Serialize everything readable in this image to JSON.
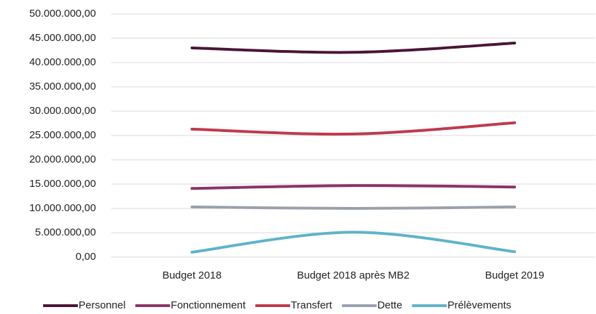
{
  "chart_data": {
    "type": "line",
    "categories": [
      "Budget 2018",
      "Budget 2018 après MB2",
      "Budget 2019"
    ],
    "series": [
      {
        "name": "Personnel",
        "color": "#4a1536",
        "values": [
          43000000,
          42100000,
          44000000
        ]
      },
      {
        "name": "Fonctionnement",
        "color": "#8b3366",
        "values": [
          14100000,
          14700000,
          14400000
        ]
      },
      {
        "name": "Transfert",
        "color": "#c0394e",
        "values": [
          26300000,
          25300000,
          27600000
        ]
      },
      {
        "name": "Dette",
        "color": "#9aa0ac",
        "values": [
          10300000,
          10000000,
          10300000
        ]
      },
      {
        "name": "Prélèvements",
        "color": "#5fb3c9",
        "values": [
          1000000,
          5100000,
          1100000
        ]
      }
    ],
    "ylim": [
      0,
      50000000
    ],
    "yticks": [
      {
        "value": 0,
        "label": "0,00"
      },
      {
        "value": 5000000,
        "label": "5.000.000,00"
      },
      {
        "value": 10000000,
        "label": "10.000.000,00"
      },
      {
        "value": 15000000,
        "label": "15.000.000,00"
      },
      {
        "value": 20000000,
        "label": "20.000.000,00"
      },
      {
        "value": 25000000,
        "label": "25.000.000,00"
      },
      {
        "value": 30000000,
        "label": "30.000.000,00"
      },
      {
        "value": 35000000,
        "label": "35.000.000,00"
      },
      {
        "value": 40000000,
        "label": "40.000.000,00"
      },
      {
        "value": 45000000,
        "label": "45.000.000,00"
      },
      {
        "value": 50000000,
        "label": "50.000.000,00"
      }
    ],
    "grid": true,
    "legend": "bottom"
  }
}
